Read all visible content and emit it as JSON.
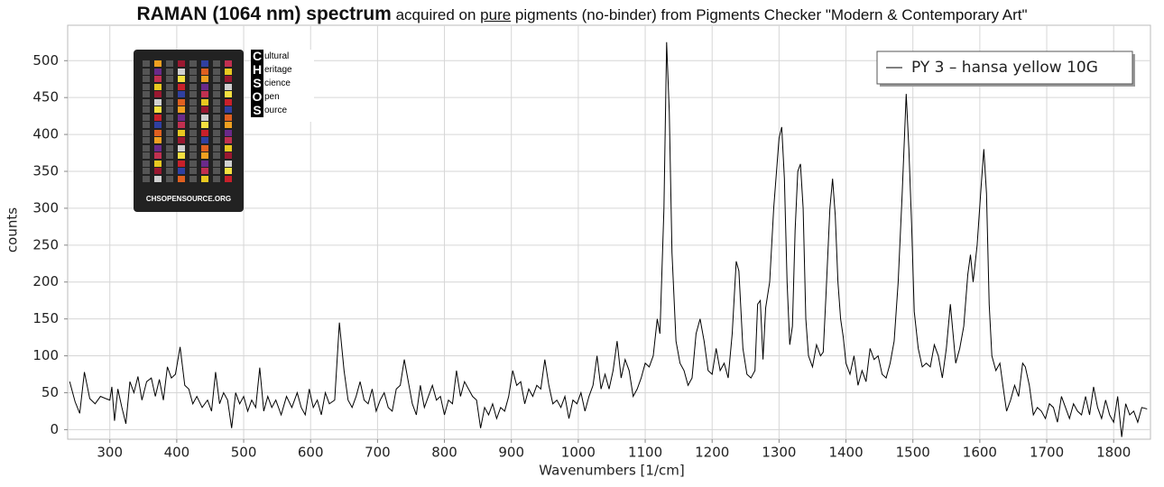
{
  "chart_data": {
    "type": "line",
    "title": [
      "RAMAN (1064 nm) spectrum",
      "acquired on",
      "pure",
      "pigments (no-binder) from Pigments Checker \"Modern & Contemporary Art\""
    ],
    "xlabel": "Wavenumbers [1/cm]",
    "ylabel": "counts",
    "logo": {
      "letters": [
        "C",
        "H",
        "S",
        "O",
        "S"
      ],
      "words": [
        "ultural",
        "eritage",
        "cience",
        "pen",
        "ource"
      ],
      "url": "CHSOPENSOURCE.ORG"
    },
    "legend": "upper right",
    "grid": true,
    "xlim": [
      237,
      1855
    ],
    "ylim": [
      -13,
      548
    ],
    "xticks": [
      300,
      400,
      500,
      600,
      700,
      800,
      900,
      1000,
      1100,
      1200,
      1300,
      1400,
      1500,
      1600,
      1700,
      1800
    ],
    "yticks": [
      0,
      50,
      100,
      150,
      200,
      250,
      300,
      350,
      400,
      450,
      500
    ],
    "x": [
      240,
      248,
      255,
      262,
      270,
      278,
      286,
      294,
      300,
      303,
      307,
      312,
      318,
      324,
      330,
      336,
      342,
      348,
      355,
      362,
      368,
      374,
      380,
      386,
      392,
      398,
      405,
      412,
      418,
      424,
      430,
      438,
      446,
      452,
      458,
      464,
      470,
      476,
      482,
      488,
      494,
      500,
      506,
      512,
      518,
      524,
      530,
      536,
      542,
      548,
      556,
      564,
      572,
      580,
      586,
      592,
      598,
      604,
      610,
      616,
      622,
      628,
      636,
      643,
      650,
      656,
      662,
      668,
      674,
      680,
      686,
      692,
      698,
      704,
      710,
      716,
      722,
      728,
      734,
      740,
      746,
      752,
      758,
      764,
      770,
      776,
      782,
      788,
      794,
      800,
      806,
      812,
      818,
      824,
      830,
      836,
      842,
      848,
      854,
      860,
      866,
      872,
      878,
      884,
      890,
      896,
      902,
      908,
      914,
      920,
      926,
      932,
      938,
      944,
      950,
      956,
      962,
      968,
      974,
      980,
      986,
      992,
      998,
      1004,
      1010,
      1016,
      1022,
      1028,
      1034,
      1040,
      1046,
      1052,
      1058,
      1064,
      1070,
      1076,
      1082,
      1088,
      1094,
      1100,
      1106,
      1112,
      1118,
      1122,
      1128,
      1132,
      1136,
      1140,
      1146,
      1152,
      1158,
      1164,
      1170,
      1176,
      1182,
      1188,
      1194,
      1200,
      1206,
      1212,
      1218,
      1224,
      1230,
      1236,
      1240,
      1246,
      1252,
      1258,
      1264,
      1268,
      1272,
      1276,
      1280,
      1286,
      1292,
      1300,
      1304,
      1308,
      1312,
      1316,
      1320,
      1324,
      1328,
      1332,
      1336,
      1340,
      1344,
      1350,
      1356,
      1362,
      1366,
      1370,
      1376,
      1380,
      1384,
      1388,
      1392,
      1396,
      1400,
      1406,
      1412,
      1418,
      1424,
      1430,
      1436,
      1442,
      1448,
      1454,
      1460,
      1466,
      1472,
      1478,
      1484,
      1490,
      1494,
      1498,
      1502,
      1508,
      1514,
      1520,
      1526,
      1532,
      1538,
      1544,
      1550,
      1556,
      1560,
      1564,
      1570,
      1576,
      1582,
      1586,
      1590,
      1596,
      1602,
      1606,
      1610,
      1614,
      1618,
      1624,
      1630,
      1636,
      1640,
      1646,
      1652,
      1658,
      1664,
      1668,
      1674,
      1680,
      1686,
      1692,
      1698,
      1704,
      1710,
      1716,
      1722,
      1728,
      1734,
      1740,
      1746,
      1752,
      1758,
      1764,
      1770,
      1776,
      1782,
      1788,
      1794,
      1800,
      1806,
      1812,
      1818,
      1824,
      1830,
      1836,
      1842,
      1850
    ],
    "series": [
      {
        "name": "PY 3 – hansa yellow 10G",
        "color": "#000000",
        "values": [
          65,
          38,
          22,
          78,
          42,
          35,
          45,
          42,
          40,
          58,
          12,
          55,
          30,
          8,
          65,
          50,
          72,
          40,
          65,
          70,
          45,
          68,
          40,
          85,
          70,
          75,
          112,
          60,
          55,
          35,
          45,
          30,
          40,
          25,
          78,
          35,
          50,
          40,
          2,
          50,
          35,
          45,
          25,
          40,
          30,
          84,
          25,
          45,
          30,
          40,
          20,
          45,
          30,
          50,
          30,
          20,
          55,
          30,
          40,
          20,
          50,
          35,
          40,
          145,
          80,
          40,
          30,
          45,
          65,
          40,
          35,
          55,
          25,
          40,
          50,
          30,
          25,
          55,
          60,
          95,
          65,
          35,
          20,
          60,
          30,
          45,
          60,
          40,
          45,
          20,
          40,
          35,
          80,
          45,
          65,
          55,
          45,
          40,
          2,
          30,
          20,
          35,
          15,
          30,
          25,
          45,
          80,
          60,
          65,
          35,
          55,
          45,
          60,
          55,
          95,
          60,
          35,
          40,
          30,
          45,
          15,
          40,
          35,
          50,
          25,
          45,
          60,
          100,
          55,
          75,
          55,
          80,
          120,
          70,
          95,
          80,
          45,
          55,
          70,
          90,
          85,
          100,
          150,
          130,
          300,
          525,
          430,
          240,
          120,
          90,
          80,
          60,
          70,
          130,
          150,
          120,
          80,
          75,
          110,
          80,
          90,
          70,
          130,
          228,
          215,
          110,
          75,
          70,
          80,
          170,
          175,
          95,
          165,
          200,
          300,
          395,
          410,
          340,
          200,
          115,
          140,
          270,
          350,
          360,
          300,
          150,
          100,
          85,
          115,
          100,
          105,
          180,
          300,
          340,
          290,
          200,
          150,
          125,
          90,
          75,
          100,
          60,
          80,
          65,
          110,
          95,
          100,
          75,
          70,
          90,
          120,
          200,
          320,
          455,
          380,
          280,
          160,
          110,
          85,
          90,
          85,
          115,
          100,
          70,
          110,
          170,
          130,
          90,
          110,
          140,
          210,
          237,
          200,
          250,
          330,
          380,
          320,
          170,
          100,
          80,
          90,
          50,
          25,
          40,
          60,
          45,
          90,
          85,
          60,
          20,
          30,
          25,
          15,
          35,
          30,
          10,
          45,
          30,
          15,
          35,
          25,
          20,
          45,
          20,
          58,
          30,
          15,
          40,
          20,
          10,
          45,
          -10,
          35,
          20,
          25,
          10,
          30,
          28
        ]
      }
    ]
  }
}
